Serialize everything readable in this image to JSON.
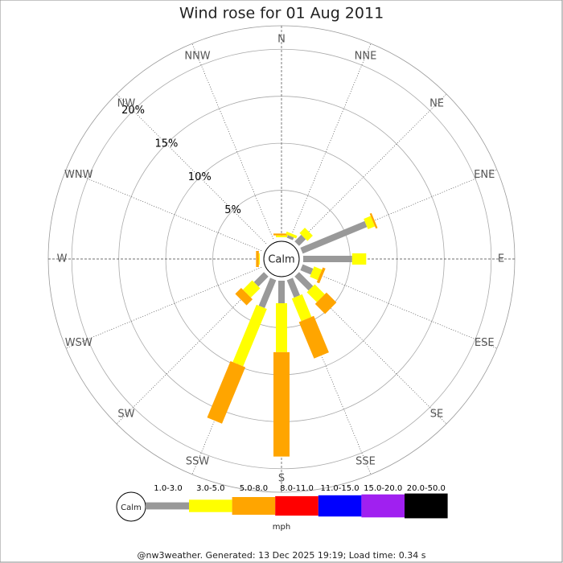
{
  "chart_data": {
    "type": "windrose",
    "title": "Wind rose for 01 Aug 2011",
    "categories": [
      "N",
      "NNE",
      "NE",
      "ENE",
      "E",
      "ESE",
      "SE",
      "SSE",
      "S",
      "SSW",
      "SW",
      "WSW",
      "W",
      "WNW",
      "NW",
      "NNW"
    ],
    "series": [
      {
        "name": "1.0-3.0",
        "color": "#999999",
        "values": [
          0,
          0.3,
          1.0,
          7.4,
          5.2,
          1.2,
          2.1,
          2.0,
          2.4,
          3.2,
          1.5,
          0,
          0,
          0,
          0,
          0
        ]
      },
      {
        "name": "3.0-5.0",
        "color": "#ffff00",
        "values": [
          0.2,
          0.3,
          0.8,
          0.8,
          1.5,
          0.9,
          1.5,
          2.6,
          5.2,
          6.6,
          1.4,
          0,
          0.1,
          0,
          0,
          0
        ]
      },
      {
        "name": "5.0-8.0",
        "color": "#ffa500",
        "values": [
          0.2,
          0,
          0,
          0.2,
          0,
          0.3,
          1.5,
          4.2,
          11.1,
          6.5,
          0.9,
          0,
          0.3,
          0,
          0,
          0
        ]
      },
      {
        "name": "8.0-11.0",
        "color": "#ff0000",
        "values": [
          0,
          0,
          0,
          0,
          0,
          0,
          0,
          0,
          0,
          0,
          0,
          0,
          0,
          0,
          0,
          0
        ]
      },
      {
        "name": "11.0-15.0",
        "color": "#0000ff",
        "values": [
          0,
          0,
          0,
          0,
          0,
          0,
          0,
          0,
          0,
          0,
          0,
          0,
          0,
          0,
          0,
          0
        ]
      },
      {
        "name": "15.0-20.0",
        "color": "#a020f0",
        "values": [
          0,
          0,
          0,
          0,
          0,
          0,
          0,
          0,
          0,
          0,
          0,
          0,
          0,
          0,
          0,
          0
        ]
      },
      {
        "name": "20.0-50.0",
        "color": "#000000",
        "values": [
          0,
          0,
          0,
          0,
          0,
          0,
          0,
          0,
          0,
          0,
          0,
          0,
          0,
          0,
          0,
          0
        ]
      }
    ],
    "rlim": [
      0,
      22.5
    ],
    "rticks": [
      {
        "value": 5,
        "label": "5%"
      },
      {
        "value": 10,
        "label": "10%"
      },
      {
        "value": 15,
        "label": "15%"
      },
      {
        "value": 20,
        "label": "20%"
      }
    ],
    "center_label": "Calm",
    "legend_calm": "Calm",
    "legend_unit": "mph",
    "footer": "@nw3weather. Generated: 13 Dec 2025 19:19; Load time: 0.34 s"
  }
}
